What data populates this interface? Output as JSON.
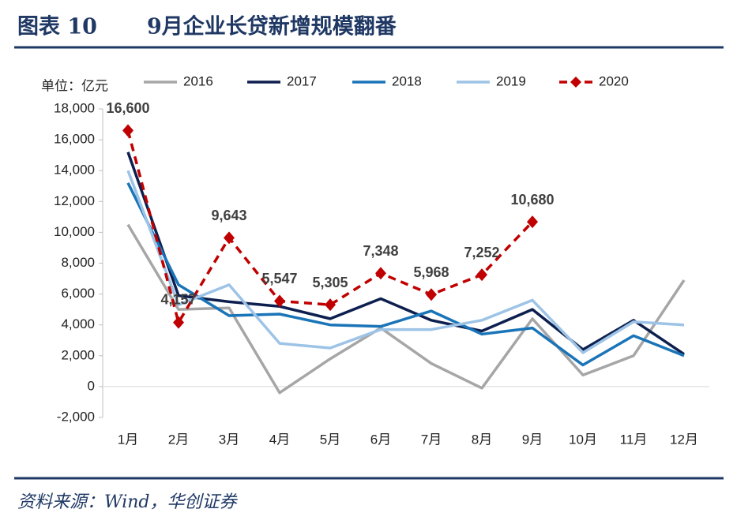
{
  "header": {
    "label": "图表 10",
    "title": "9月企业长贷新增规模翻番"
  },
  "footer": {
    "source": "资料来源：Wind，华创证券"
  },
  "chart_data": {
    "type": "line",
    "y_label": "单位：亿元",
    "categories": [
      "1月",
      "2月",
      "3月",
      "4月",
      "5月",
      "6月",
      "7月",
      "8月",
      "9月",
      "10月",
      "11月",
      "12月"
    ],
    "ylim": [
      -2000,
      18000
    ],
    "yticks": [
      {
        "value": -2000,
        "label": "-2,000"
      },
      0,
      {
        "value": 2000,
        "label": "2,000"
      },
      {
        "value": 4000,
        "label": "4,000"
      },
      {
        "value": 6000,
        "label": "6,000"
      },
      {
        "value": 8000,
        "label": "8,000"
      },
      {
        "value": 10000,
        "label": "10,000"
      },
      {
        "value": 12000,
        "label": "12,000"
      },
      {
        "value": 14000,
        "label": "14,000"
      },
      {
        "value": 16000,
        "label": "16,000"
      },
      {
        "value": 18000,
        "label": "18,000"
      }
    ],
    "legend": "top",
    "series": [
      {
        "name": "2016",
        "color": "#a6a6a6",
        "values": [
          10500,
          5000,
          5100,
          -400,
          1800,
          3800,
          1500,
          -100,
          4400,
          750,
          2000,
          6900
        ]
      },
      {
        "name": "2017",
        "color": "#0d1f4f",
        "values": [
          15200,
          5900,
          5500,
          5200,
          4400,
          5700,
          4300,
          3600,
          5000,
          2400,
          4300,
          2100
        ]
      },
      {
        "name": "2018",
        "color": "#1a74b8",
        "values": [
          13200,
          6600,
          4600,
          4700,
          4000,
          3900,
          4900,
          3400,
          3800,
          1400,
          3300,
          2000
        ]
      },
      {
        "name": "2019",
        "color": "#9dc3e6",
        "values": [
          14000,
          5300,
          6600,
          2800,
          2500,
          3700,
          3700,
          4300,
          5600,
          2200,
          4200,
          4000
        ]
      },
      {
        "name": "2020",
        "color": "#c00000",
        "dashed": true,
        "marker": "diamond",
        "values": [
          16600,
          4157,
          9643,
          5547,
          5305,
          7348,
          5968,
          7252,
          10680,
          null,
          null,
          null
        ],
        "value_labels": [
          "16,600",
          "4,157",
          "9,643",
          "5,547",
          "5,305",
          "7,348",
          "5,968",
          "7,252",
          "10,680",
          null,
          null,
          null
        ]
      }
    ]
  }
}
